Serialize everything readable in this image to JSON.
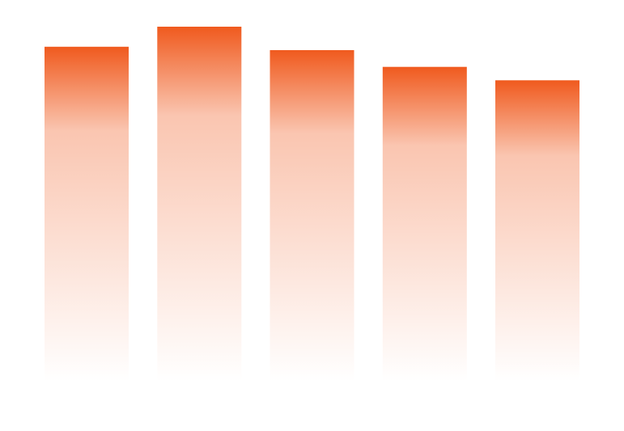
{
  "chart_data": {
    "type": "bar",
    "categories": [
      "",
      "",
      "",
      "",
      ""
    ],
    "values": [
      100,
      106,
      99,
      94,
      90
    ],
    "ylim": [
      0,
      106
    ],
    "grid": false,
    "legend": "none",
    "title": "",
    "xlabel": "",
    "ylabel": ""
  },
  "colors": {
    "bar_top": "#f05a1e",
    "bar_bottom": "#ffffff",
    "background": "#ffffff"
  }
}
